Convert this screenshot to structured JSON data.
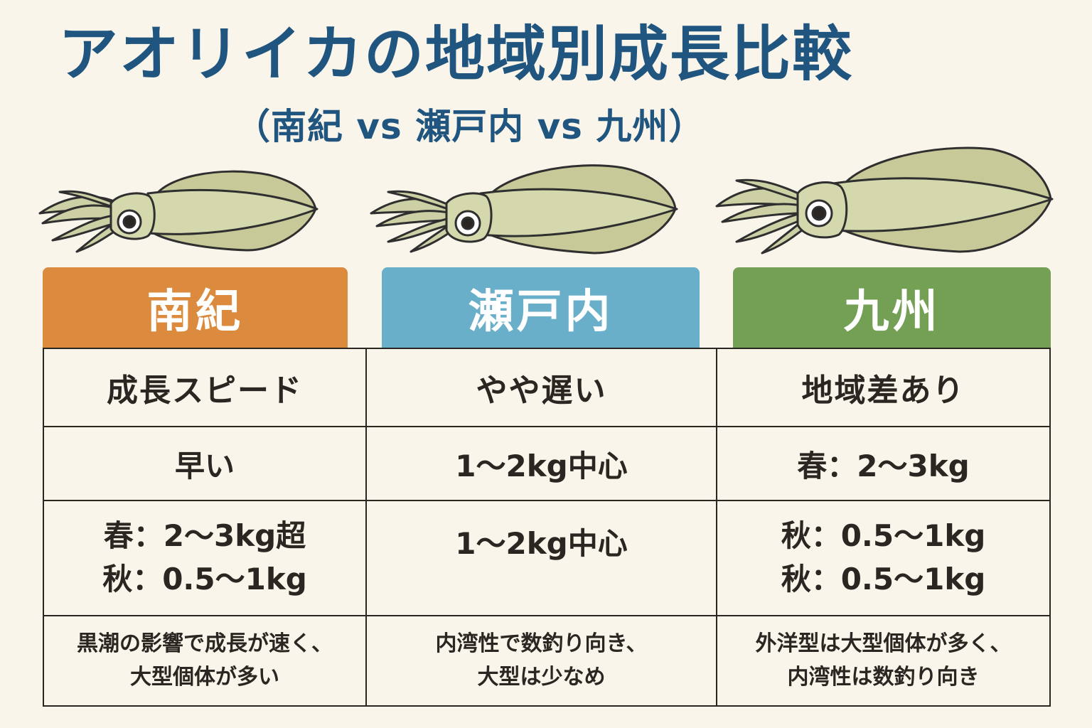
{
  "title": "アオリイカの地域別成長比較",
  "subtitle": "（南紀 vs 瀬戸内 vs 九州）",
  "regions": [
    {
      "name": "南紀",
      "color": "#db8a3e",
      "row1": "成長スピード",
      "row2": "早い",
      "row3": "春：2〜3kg超\n秋：0.5〜1kg",
      "note": "黒潮の影響で成長が速く、\n大型個体が多い"
    },
    {
      "name": "瀬戸内",
      "color": "#6aafc9",
      "row1": "やや遅い",
      "row2": "1〜2kg中心",
      "row3": "1〜2kg中心",
      "note": "内湾性で数釣り向き、\n大型は少なめ"
    },
    {
      "name": "九州",
      "color": "#73a055",
      "row1": "地域差あり",
      "row2": "春：2〜3kg",
      "row3": "秋：0.5〜1kg\n秋：0.5〜1kg",
      "note": "外洋型は大型個体が多く、\n内湾性は数釣り向き"
    }
  ],
  "icons": [
    "squid-icon",
    "squid-icon",
    "squid-icon"
  ]
}
